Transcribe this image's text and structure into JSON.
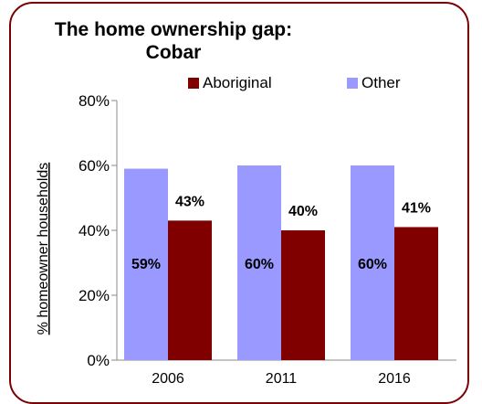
{
  "chart_data": {
    "type": "bar",
    "title_line1": "The home ownership gap:",
    "title_line2": "Cobar",
    "ylabel": "% homeowner households",
    "xlabel": "",
    "categories": [
      "2006",
      "2011",
      "2016"
    ],
    "series": [
      {
        "name": "Other",
        "color": "#9999ff",
        "values": [
          59,
          60,
          60
        ],
        "labels": [
          "59%",
          "60%",
          "60%"
        ]
      },
      {
        "name": "Aboriginal",
        "color": "#800000",
        "values": [
          43,
          40,
          41
        ],
        "labels": [
          "43%",
          "40%",
          "41%"
        ]
      }
    ],
    "legend_order": [
      "Aboriginal",
      "Other"
    ],
    "legend_position": "top-right",
    "ylim": [
      0,
      80
    ],
    "yticks": [
      0,
      20,
      40,
      60,
      80
    ],
    "ytick_labels": [
      "0%",
      "20%",
      "40%",
      "60%",
      "80%"
    ],
    "grid": false
  }
}
